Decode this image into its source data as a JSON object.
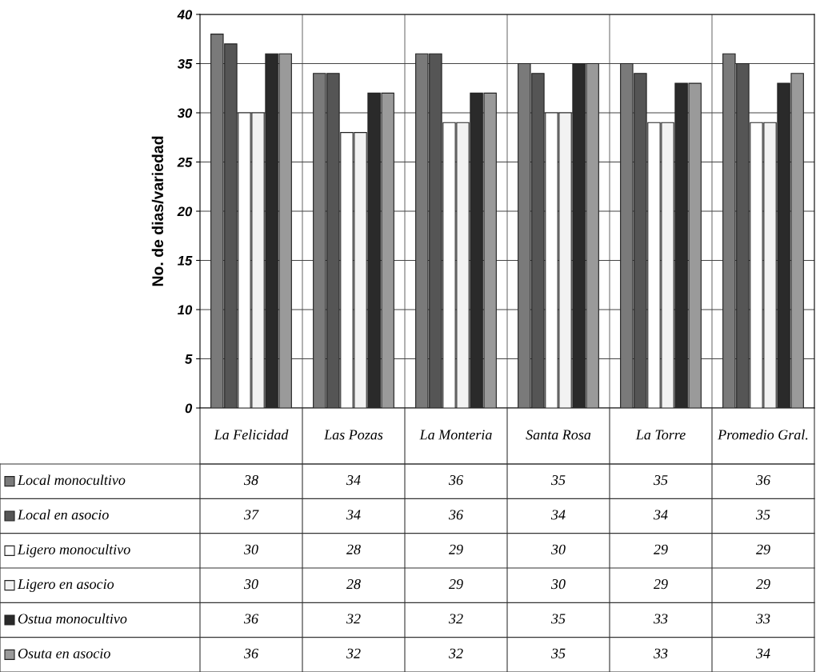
{
  "chart_data": {
    "type": "bar",
    "ylabel": "No. de dias/variedad",
    "categories": [
      "La Felicidad",
      "Las Pozas",
      "La Monteria",
      "Santa Rosa",
      "La Torre",
      "Promedio Gral."
    ],
    "series": [
      {
        "name": "Local monocultivo",
        "color": "#7a7a7a",
        "values": [
          38,
          34,
          36,
          35,
          35,
          36
        ]
      },
      {
        "name": "Local en asocio",
        "color": "#555555",
        "values": [
          37,
          34,
          36,
          34,
          34,
          35
        ]
      },
      {
        "name": "Ligero monocultivo",
        "color": "#ffffff",
        "values": [
          30,
          28,
          29,
          30,
          29,
          29
        ]
      },
      {
        "name": "Ligero en asocio",
        "color": "#f2f2f2",
        "values": [
          30,
          28,
          29,
          30,
          29,
          29
        ]
      },
      {
        "name": "Ostua monocultivo",
        "color": "#2a2a2a",
        "values": [
          36,
          32,
          32,
          35,
          33,
          33
        ]
      },
      {
        "name": "Osuta en asocio",
        "color": "#9a9a9a",
        "values": [
          36,
          32,
          32,
          35,
          33,
          34
        ]
      }
    ],
    "ylim": [
      0,
      40
    ],
    "yticks": [
      0,
      5,
      10,
      15,
      20,
      25,
      30,
      35,
      40
    ],
    "grid": "y",
    "data_labels": true,
    "legend": "bottom"
  }
}
